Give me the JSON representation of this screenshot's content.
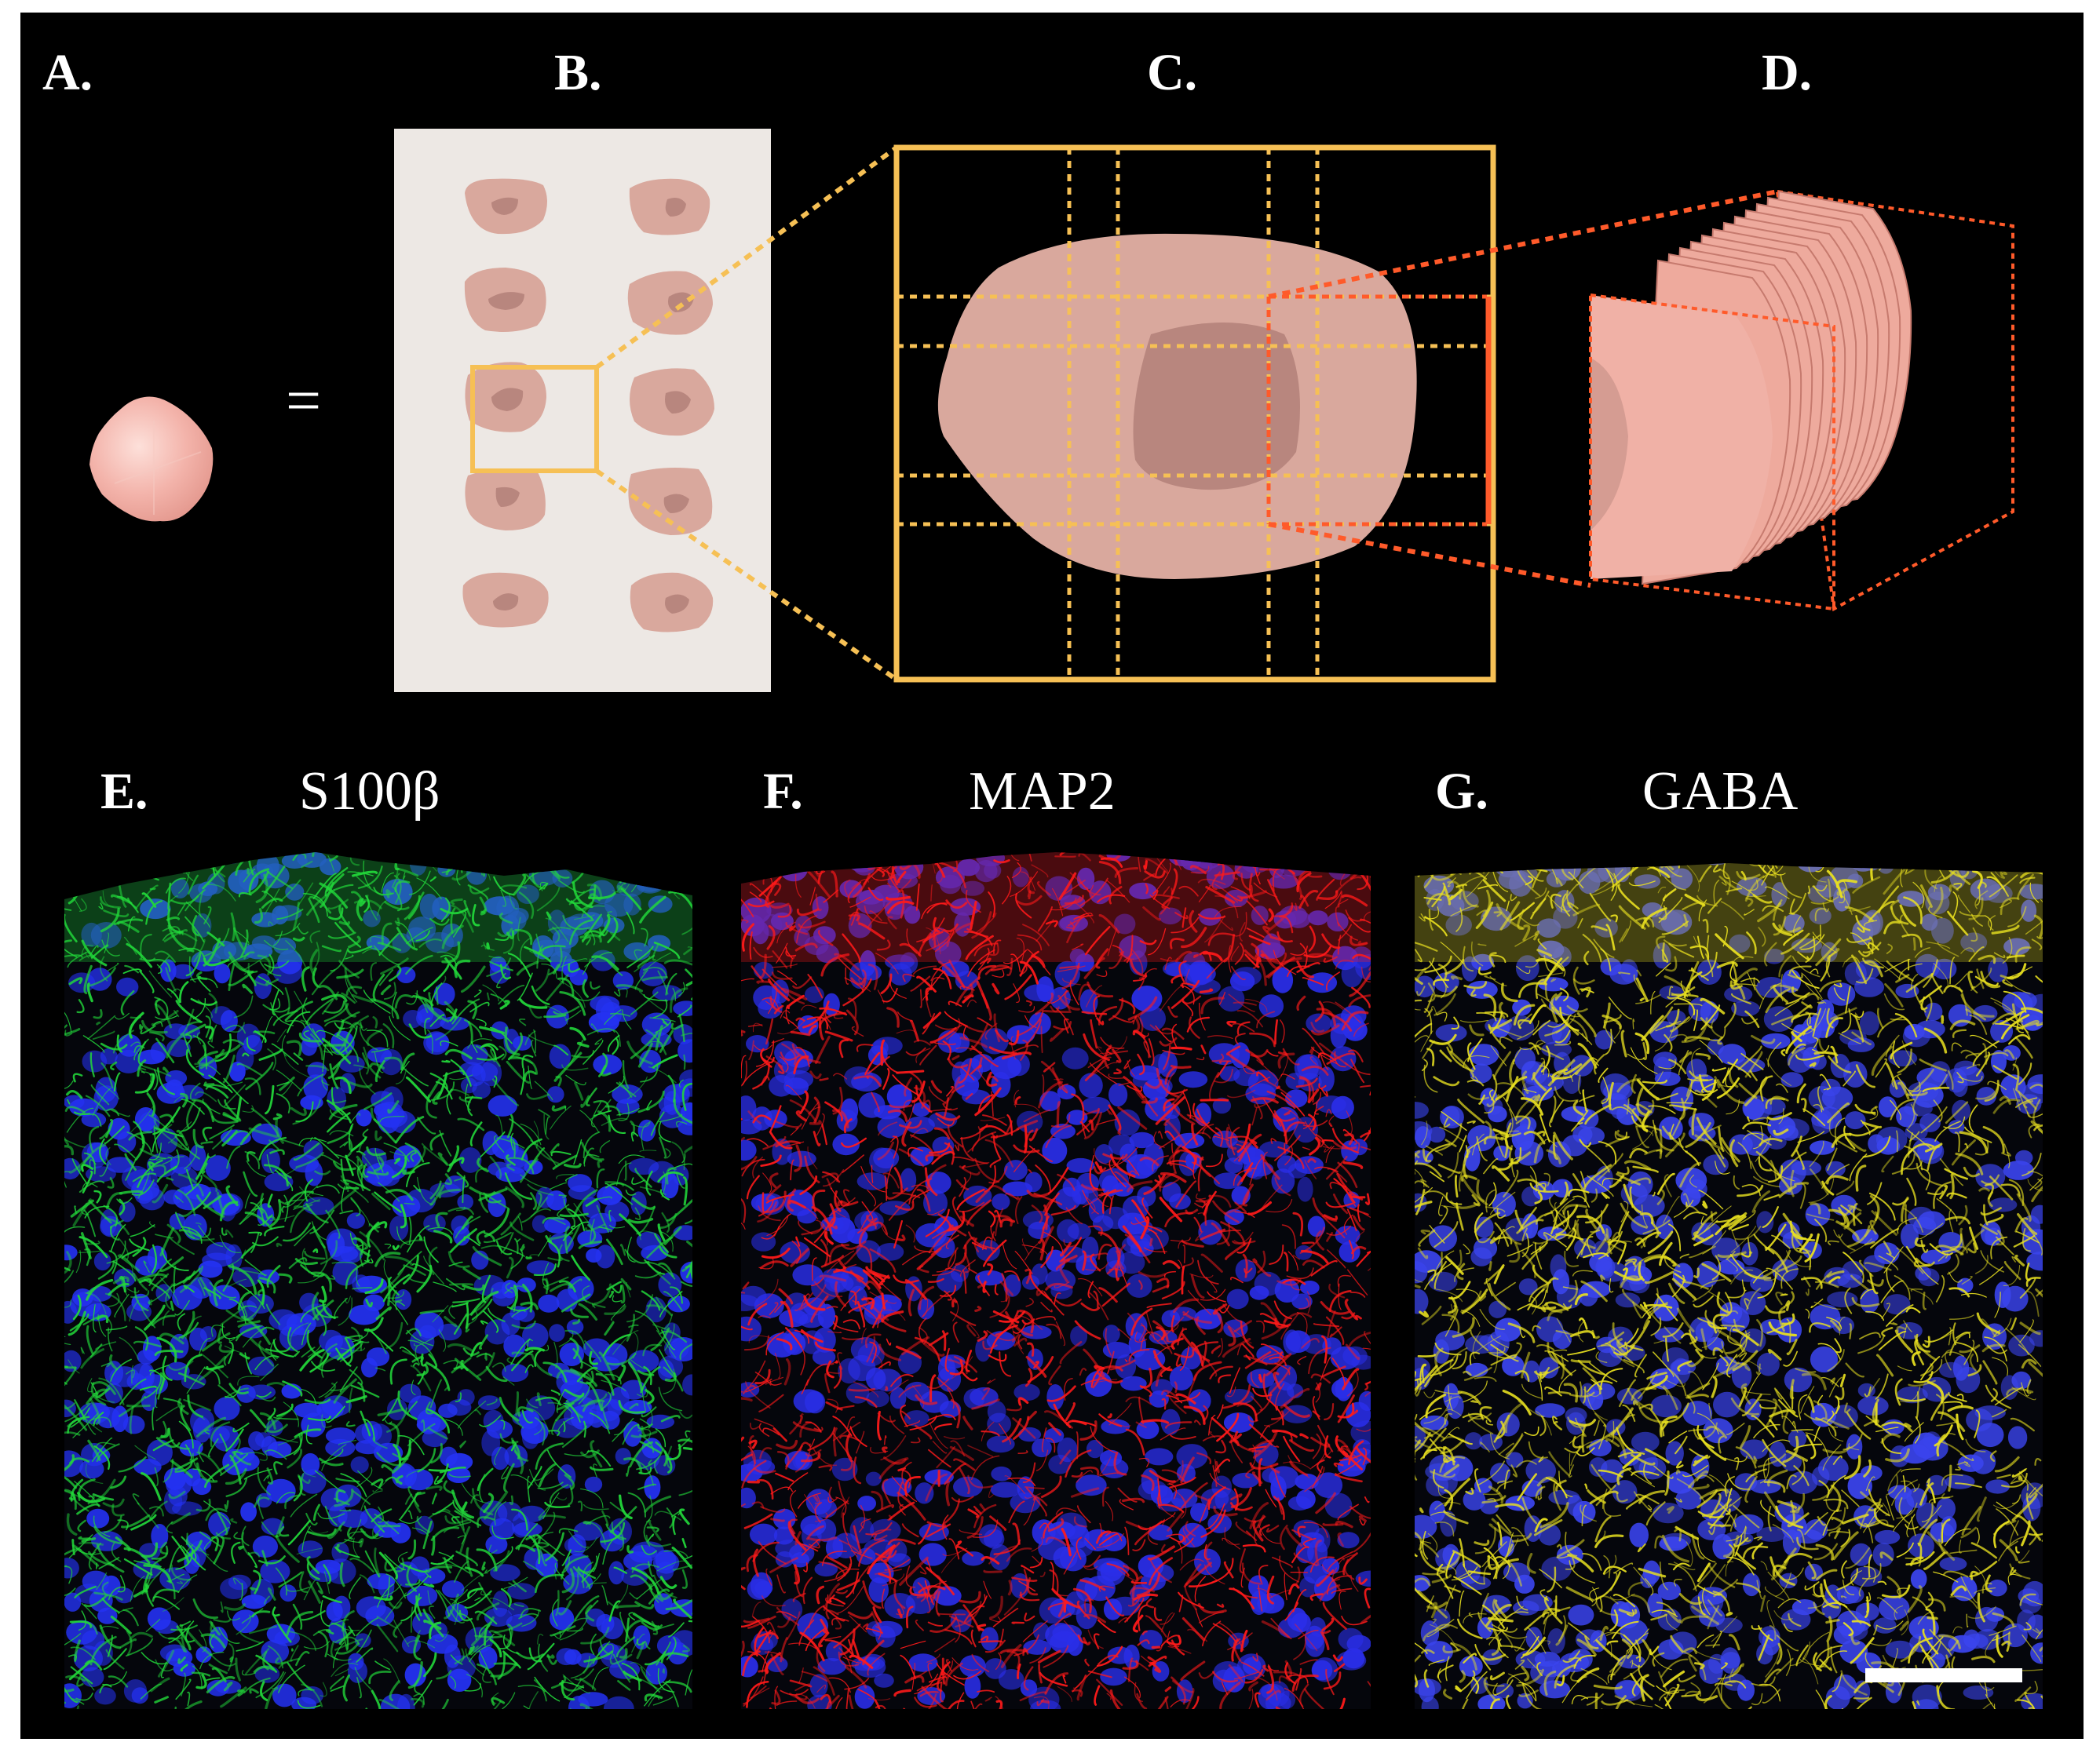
{
  "panels": {
    "a": {
      "label": "A."
    },
    "b": {
      "label": "B."
    },
    "c": {
      "label": "C."
    },
    "d": {
      "label": "D."
    },
    "equals": "=",
    "e": {
      "label": "E.",
      "marker": "S100β",
      "stain": "#22d83a",
      "nuclei": "#2432f2"
    },
    "f": {
      "label": "F.",
      "marker": "MAP2",
      "stain": "#ff1a1a",
      "nuclei": "#2a2ee8"
    },
    "g": {
      "label": "G.",
      "marker": "GABA",
      "stain": "#e8e020",
      "nuclei": "#3a44ec"
    }
  },
  "colors": {
    "background": "#000000",
    "cell_fill": "#d9a89d",
    "cell_nucleus": "#b8867e",
    "slide_fill": "#ede8e4",
    "zoom_box": "#f6c055",
    "slice_lines": "#ff5a2a",
    "spheroid": "#f3b3aa"
  },
  "scale_bar": {
    "shown": true
  }
}
